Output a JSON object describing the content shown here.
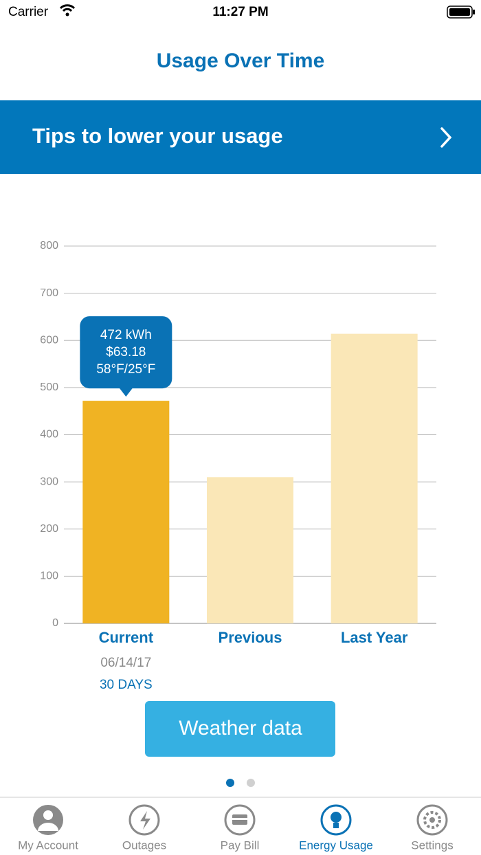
{
  "status_bar": {
    "carrier": "Carrier",
    "time": "11:27 PM"
  },
  "header": {
    "title": "Usage Over Time"
  },
  "banner": {
    "text": "Tips to lower your usage"
  },
  "chart_data": {
    "type": "bar",
    "categories": [
      "Current",
      "Previous",
      "Last Year"
    ],
    "values": [
      472,
      310,
      614
    ],
    "colors": [
      "#f0b323",
      "#fae7b7",
      "#fae7b7"
    ],
    "ylim": [
      0,
      800
    ],
    "yticks": [
      0,
      100,
      200,
      300,
      400,
      500,
      600,
      700,
      800
    ],
    "grid": true,
    "tooltip": {
      "lines": [
        "472 kWh",
        "$63.18",
        "58°F/25°F"
      ]
    },
    "current_period": {
      "date": "06/14/17",
      "days": "30 DAYS"
    }
  },
  "button": {
    "label": "Weather data"
  },
  "tabs": [
    "My Account",
    "Outages",
    "Pay Bill",
    "Energy Usage",
    "Settings"
  ]
}
